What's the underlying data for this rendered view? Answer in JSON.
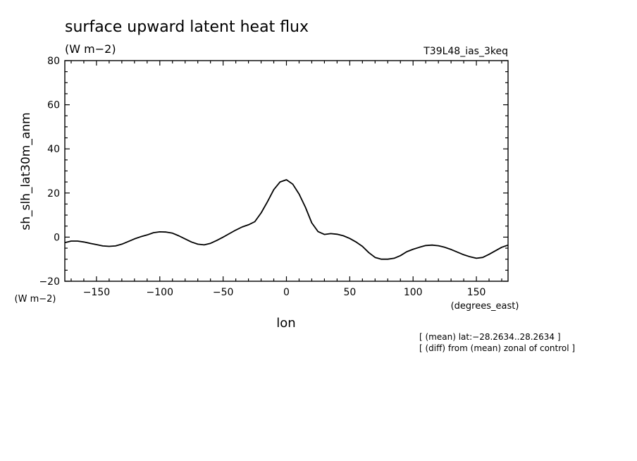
{
  "chart_data": {
    "type": "line",
    "title": "surface upward latent heat flux",
    "units": "(W m−2)",
    "run_label": "T39L48_ias_3keq",
    "xlabel": "lon",
    "xunits": "(degrees_east)",
    "ylabel": "sh_slh_lat30m_anm",
    "yunits": "(W m−2)",
    "xlim": [
      -175,
      175
    ],
    "ylim": [
      -20,
      80
    ],
    "xticks": [
      -150,
      -100,
      -50,
      0,
      50,
      100,
      150
    ],
    "yticks": [
      -20,
      0,
      20,
      40,
      60,
      80
    ],
    "xtick_labels": [
      "−150",
      "−100",
      "−50",
      "0",
      "50",
      "100",
      "150"
    ],
    "ytick_labels": [
      "−20",
      "0",
      "20",
      "40",
      "60",
      "80"
    ],
    "grid": false,
    "notes": [
      "[ (mean) lat:−28.2634..28.2634 ]",
      "[ (diff) from (mean) zonal of control ]"
    ],
    "series": [
      {
        "x": [
          -175,
          -170,
          -165,
          -160,
          -155,
          -150,
          -145,
          -140,
          -135,
          -130,
          -125,
          -120,
          -115,
          -110,
          -105,
          -100,
          -95,
          -90,
          -85,
          -80,
          -75,
          -70,
          -65,
          -60,
          -55,
          -50,
          -45,
          -40,
          -35,
          -30,
          -25,
          -20,
          -15,
          -10,
          -5,
          0,
          5,
          10,
          15,
          20,
          25,
          30,
          35,
          40,
          45,
          50,
          55,
          60,
          65,
          70,
          75,
          80,
          85,
          90,
          95,
          100,
          105,
          110,
          115,
          120,
          125,
          130,
          135,
          140,
          145,
          150,
          155,
          160,
          165,
          170,
          175
        ],
        "values": [
          -2.5,
          -1.8,
          -1.8,
          -2.2,
          -2.8,
          -3.4,
          -4.0,
          -4.2,
          -4.0,
          -3.2,
          -2.0,
          -0.8,
          0.2,
          1.0,
          2.0,
          2.4,
          2.3,
          1.8,
          0.6,
          -0.8,
          -2.2,
          -3.2,
          -3.5,
          -2.8,
          -1.5,
          0.0,
          1.6,
          3.2,
          4.6,
          5.6,
          7.0,
          11.0,
          16.0,
          21.5,
          25.0,
          26.0,
          24.0,
          19.5,
          13.5,
          6.5,
          2.5,
          1.2,
          1.6,
          1.3,
          0.6,
          -0.6,
          -2.2,
          -4.2,
          -7.0,
          -9.2,
          -10.0,
          -10.0,
          -9.6,
          -8.4,
          -6.6,
          -5.5,
          -4.6,
          -3.8,
          -3.6,
          -3.9,
          -4.6,
          -5.6,
          -6.8,
          -8.0,
          -8.9,
          -9.6,
          -9.2,
          -7.8,
          -6.2,
          -4.6,
          -3.6
        ]
      }
    ]
  }
}
